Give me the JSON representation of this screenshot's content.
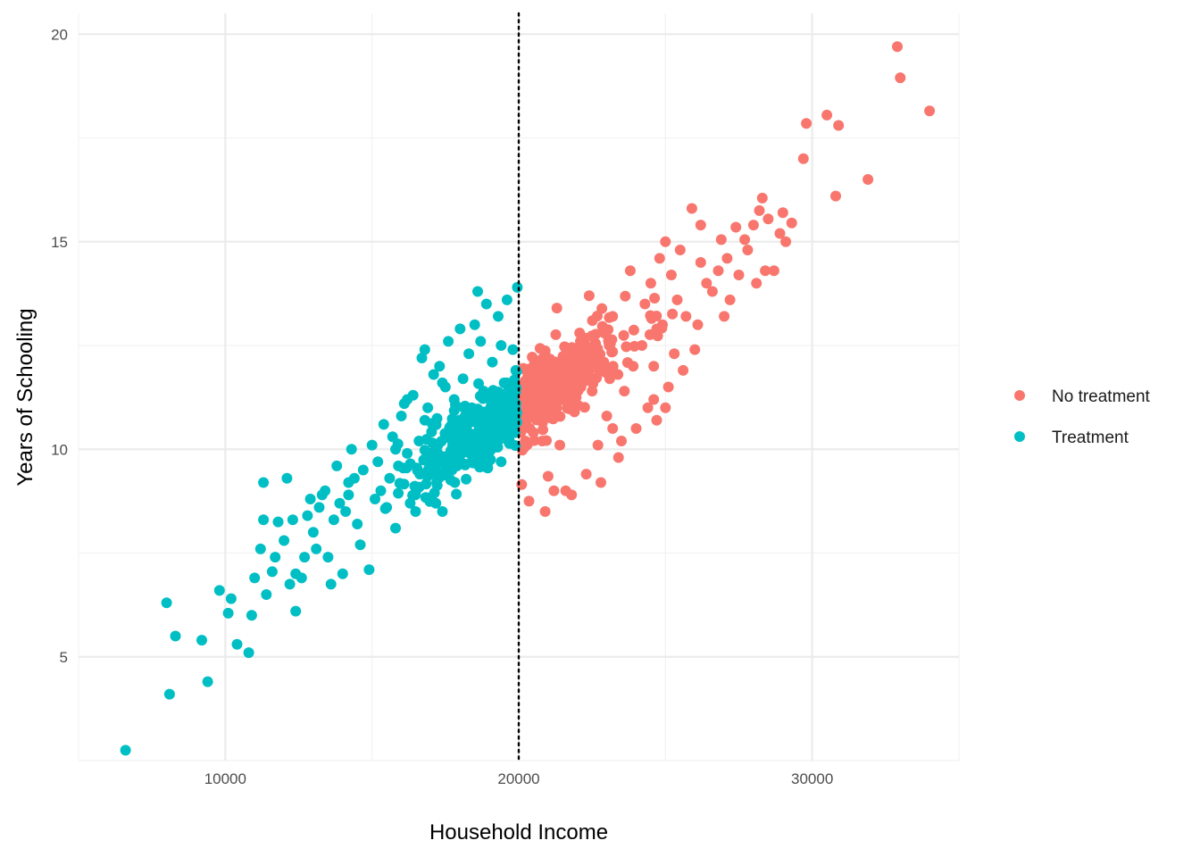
{
  "chart_data": {
    "type": "scatter",
    "title": "",
    "xlabel": "Household Income",
    "ylabel": "Years of Schooling",
    "xlim": [
      5000,
      35000
    ],
    "ylim": [
      2.5,
      20.5
    ],
    "x_ticks": [
      10000,
      20000,
      30000
    ],
    "y_ticks": [
      5,
      10,
      15,
      20
    ],
    "grid": true,
    "legend_position": "right",
    "cutoff_line": {
      "x": 20000,
      "style": "dotted",
      "color": "#000000"
    },
    "seed": 20240517,
    "series": [
      {
        "name": "No treatment",
        "color": "#F8766D",
        "points": [
          [
            20100,
            9.15
          ],
          [
            20200,
            10.05
          ],
          [
            20350,
            8.75
          ],
          [
            20500,
            10.4
          ],
          [
            20700,
            11.05
          ],
          [
            20900,
            8.5
          ],
          [
            21000,
            9.35
          ],
          [
            21200,
            9.0
          ],
          [
            21300,
            13.4
          ],
          [
            21400,
            10.1
          ],
          [
            21500,
            11.7
          ],
          [
            21800,
            8.9
          ],
          [
            22000,
            12.3
          ],
          [
            22100,
            12.6
          ],
          [
            22300,
            9.4
          ],
          [
            22500,
            11.4
          ],
          [
            22700,
            10.1
          ],
          [
            22900,
            12.1
          ],
          [
            22400,
            13.7
          ],
          [
            23000,
            10.8
          ],
          [
            23200,
            13.2
          ],
          [
            23400,
            9.8
          ],
          [
            23600,
            11.4
          ],
          [
            23800,
            14.3
          ],
          [
            23900,
            12.0
          ],
          [
            24000,
            10.5
          ],
          [
            24200,
            12.5
          ],
          [
            24300,
            13.5
          ],
          [
            24400,
            11.0
          ],
          [
            24500,
            14.0
          ],
          [
            24600,
            11.2
          ],
          [
            24700,
            12.9
          ],
          [
            24800,
            14.6
          ],
          [
            24900,
            13.0
          ],
          [
            25000,
            15.0
          ],
          [
            25100,
            11.5
          ],
          [
            25200,
            14.2
          ],
          [
            25300,
            12.3
          ],
          [
            25400,
            13.6
          ],
          [
            25500,
            14.8
          ],
          [
            25600,
            11.9
          ],
          [
            25700,
            13.2
          ],
          [
            25900,
            15.8
          ],
          [
            26100,
            13.0
          ],
          [
            26200,
            14.5
          ],
          [
            26200,
            15.4
          ],
          [
            26400,
            14.0
          ],
          [
            26600,
            13.8
          ],
          [
            26800,
            14.3
          ],
          [
            26900,
            15.05
          ],
          [
            27100,
            14.6
          ],
          [
            27200,
            13.6
          ],
          [
            27400,
            15.35
          ],
          [
            27500,
            14.2
          ],
          [
            27700,
            15.05
          ],
          [
            27800,
            14.8
          ],
          [
            28000,
            15.4
          ],
          [
            28100,
            14.0
          ],
          [
            28200,
            15.75
          ],
          [
            28300,
            16.05
          ],
          [
            28500,
            15.55
          ],
          [
            28700,
            14.3
          ],
          [
            28900,
            15.2
          ],
          [
            29000,
            15.7
          ],
          [
            29100,
            15.0
          ],
          [
            29300,
            15.45
          ],
          [
            28400,
            14.3
          ],
          [
            27000,
            13.2
          ],
          [
            26000,
            12.4
          ],
          [
            25000,
            11.0
          ],
          [
            24700,
            10.7
          ],
          [
            23500,
            10.2
          ],
          [
            22800,
            9.2
          ],
          [
            21600,
            9.0
          ],
          [
            23200,
            10.5
          ],
          [
            24600,
            12.0
          ],
          [
            23100,
            11.7
          ],
          [
            21900,
            10.9
          ],
          [
            20800,
            10.2
          ],
          [
            22600,
            12.0
          ],
          [
            29800,
            17.85
          ],
          [
            29700,
            17.0
          ],
          [
            30500,
            18.05
          ],
          [
            30900,
            17.8
          ],
          [
            30800,
            16.1
          ],
          [
            31900,
            16.5
          ],
          [
            32900,
            19.7
          ],
          [
            33000,
            18.95
          ],
          [
            34000,
            18.15
          ]
        ]
      },
      {
        "name": "Treatment",
        "color": "#00BFC4",
        "points": [
          [
            6600,
            2.75
          ],
          [
            8000,
            6.3
          ],
          [
            8100,
            4.1
          ],
          [
            8300,
            5.5
          ],
          [
            9200,
            5.4
          ],
          [
            9400,
            4.4
          ],
          [
            9800,
            6.6
          ],
          [
            10100,
            6.05
          ],
          [
            10200,
            6.4
          ],
          [
            10400,
            5.3
          ],
          [
            10800,
            5.1
          ],
          [
            10900,
            6.0
          ],
          [
            11000,
            6.9
          ],
          [
            11200,
            7.6
          ],
          [
            11300,
            8.3
          ],
          [
            11300,
            9.2
          ],
          [
            11400,
            6.5
          ],
          [
            11600,
            7.05
          ],
          [
            11800,
            8.25
          ],
          [
            12000,
            7.8
          ],
          [
            12100,
            9.3
          ],
          [
            12200,
            6.75
          ],
          [
            12400,
            6.1
          ],
          [
            12400,
            7.0
          ],
          [
            12600,
            6.9
          ],
          [
            12700,
            7.4
          ],
          [
            12800,
            8.4
          ],
          [
            13000,
            8.0
          ],
          [
            13100,
            7.6
          ],
          [
            13200,
            8.6
          ],
          [
            13300,
            8.9
          ],
          [
            13400,
            9.0
          ],
          [
            13500,
            7.4
          ],
          [
            13600,
            6.75
          ],
          [
            13700,
            8.3
          ],
          [
            13800,
            9.6
          ],
          [
            14000,
            7.0
          ],
          [
            14100,
            8.5
          ],
          [
            14200,
            9.2
          ],
          [
            14300,
            10.0
          ],
          [
            14500,
            8.2
          ],
          [
            14600,
            7.7
          ],
          [
            14700,
            9.5
          ],
          [
            14900,
            7.1
          ],
          [
            15000,
            10.1
          ],
          [
            15100,
            8.8
          ],
          [
            15200,
            9.7
          ],
          [
            15400,
            10.6
          ],
          [
            15500,
            8.6
          ],
          [
            15600,
            9.3
          ],
          [
            15700,
            10.3
          ],
          [
            15800,
            8.1
          ],
          [
            15900,
            9.6
          ],
          [
            16000,
            10.8
          ],
          [
            16100,
            11.1
          ],
          [
            16200,
            9.9
          ],
          [
            16300,
            8.7
          ],
          [
            16400,
            11.3
          ],
          [
            16500,
            9.0
          ],
          [
            16600,
            10.2
          ],
          [
            16700,
            12.2
          ],
          [
            16800,
            10.7
          ],
          [
            16900,
            11.0
          ],
          [
            17000,
            9.5
          ],
          [
            17100,
            11.8
          ],
          [
            17200,
            10.1
          ],
          [
            17300,
            12.0
          ],
          [
            17400,
            8.5
          ],
          [
            17500,
            11.5
          ],
          [
            17600,
            12.6
          ],
          [
            17700,
            10.3
          ],
          [
            17800,
            11.2
          ],
          [
            17900,
            9.6
          ],
          [
            18000,
            12.9
          ],
          [
            18100,
            11.7
          ],
          [
            18200,
            10.8
          ],
          [
            18300,
            12.3
          ],
          [
            18400,
            11.0
          ],
          [
            18500,
            13.0
          ],
          [
            18600,
            9.9
          ],
          [
            18700,
            12.6
          ],
          [
            18800,
            11.4
          ],
          [
            18900,
            13.5
          ],
          [
            19000,
            10.3
          ],
          [
            19100,
            12.1
          ],
          [
            19200,
            11.0
          ],
          [
            19300,
            13.2
          ],
          [
            19400,
            12.5
          ],
          [
            19500,
            11.6
          ],
          [
            19600,
            13.6
          ],
          [
            19700,
            10.4
          ],
          [
            19800,
            12.4
          ],
          [
            19900,
            11.9
          ],
          [
            19950,
            13.9
          ],
          [
            19400,
            9.7
          ],
          [
            18100,
            10.3
          ],
          [
            17400,
            11.6
          ],
          [
            16200,
            11.2
          ],
          [
            15300,
            9.0
          ],
          [
            14400,
            9.3
          ],
          [
            13900,
            8.7
          ],
          [
            12900,
            8.8
          ],
          [
            11700,
            7.4
          ],
          [
            12300,
            8.3
          ],
          [
            16800,
            12.4
          ],
          [
            18600,
            13.8
          ],
          [
            19700,
            11.1
          ],
          [
            17200,
            9.2
          ],
          [
            15800,
            10.0
          ],
          [
            14200,
            8.9
          ]
        ]
      }
    ]
  }
}
